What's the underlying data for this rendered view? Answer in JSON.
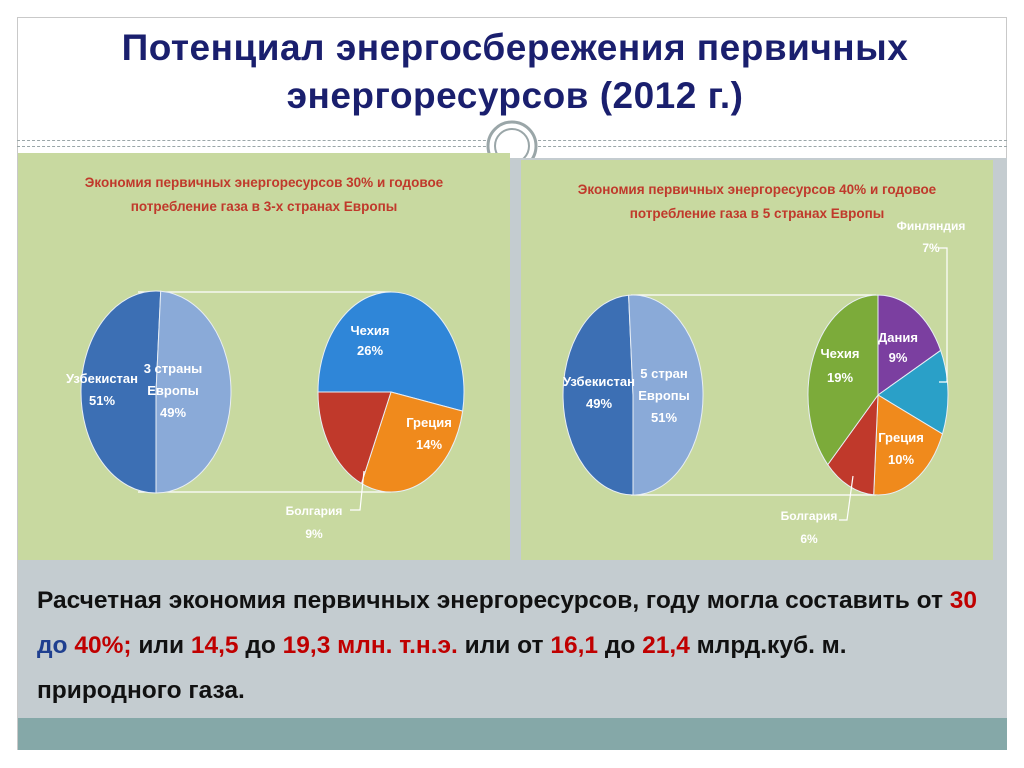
{
  "slide": {
    "title_line1": "Потенциал энергосбережения первичных",
    "title_line2": "энергоресурсов  (2012 г.)",
    "colors": {
      "title": "#1a1f6e",
      "chart_bg": "#c8d9a0",
      "panel": "#c4ccd0",
      "accent": "#c00000"
    }
  },
  "summary": {
    "t1": "Расчетная экономия первичных энергоресурсов, году могла составить  от ",
    "v1": "30",
    "t2": " до ",
    "v2": "40%;",
    "t3": " или ",
    "v3": "14,5",
    "t4": " до ",
    "v4": "19,3 млн. т.н.э.",
    "t5": " или от ",
    "v5": "16,1",
    "t6": " до ",
    "v6": "21,4",
    "t7": " млрд.куб. м.  природного газа."
  },
  "chart_data": [
    {
      "type": "pie",
      "title_line1": "Экономия первичных энергоресурсов 30% и годовое",
      "title_line2": "потребление газа в 3-х странах Европы",
      "main_pie": {
        "slices": [
          {
            "label": "Узбекистан",
            "value": 51,
            "value_label": "51%",
            "color": "#3c6fb4"
          },
          {
            "label_line1": "3 страны",
            "label_line2": "Европы",
            "value": 49,
            "value_label": "49%",
            "color": "#8aaad8"
          }
        ]
      },
      "sub_pie": {
        "slices": [
          {
            "label": "Чехия",
            "value": 26,
            "value_label": "26%",
            "color": "#2f86d8"
          },
          {
            "label": "Греция",
            "value": 14,
            "value_label": "14%",
            "color": "#f08a1c"
          },
          {
            "label": "Болгария",
            "value": 9,
            "value_label": "9%",
            "color": "#c0392b"
          }
        ]
      }
    },
    {
      "type": "pie",
      "title_line1": "Экономия первичных энергоресурсов 40% и годовое",
      "title_line2": "потребление газа в 5 странах Европы",
      "main_pie": {
        "slices": [
          {
            "label": "Узбекистан",
            "value": 49,
            "value_label": "49%",
            "color": "#3c6fb4"
          },
          {
            "label_line1": "5 стран",
            "label_line2": "Европы",
            "value": 51,
            "value_label": "51%",
            "color": "#8aaad8"
          }
        ]
      },
      "sub_pie": {
        "slices": [
          {
            "label": "Дания",
            "value": 9,
            "value_label": "9%",
            "color": "#7b3fa0"
          },
          {
            "label": "Финляндия",
            "value": 7,
            "value_label": "7%",
            "color": "#2aa0c8"
          },
          {
            "label": "Греция",
            "value": 10,
            "value_label": "10%",
            "color": "#f08a1c"
          },
          {
            "label": "Болгария",
            "value": 6,
            "value_label": "6%",
            "color": "#c0392b"
          },
          {
            "label": "Чехия",
            "value": 19,
            "value_label": "19%",
            "color": "#7cab3a"
          }
        ]
      }
    }
  ]
}
